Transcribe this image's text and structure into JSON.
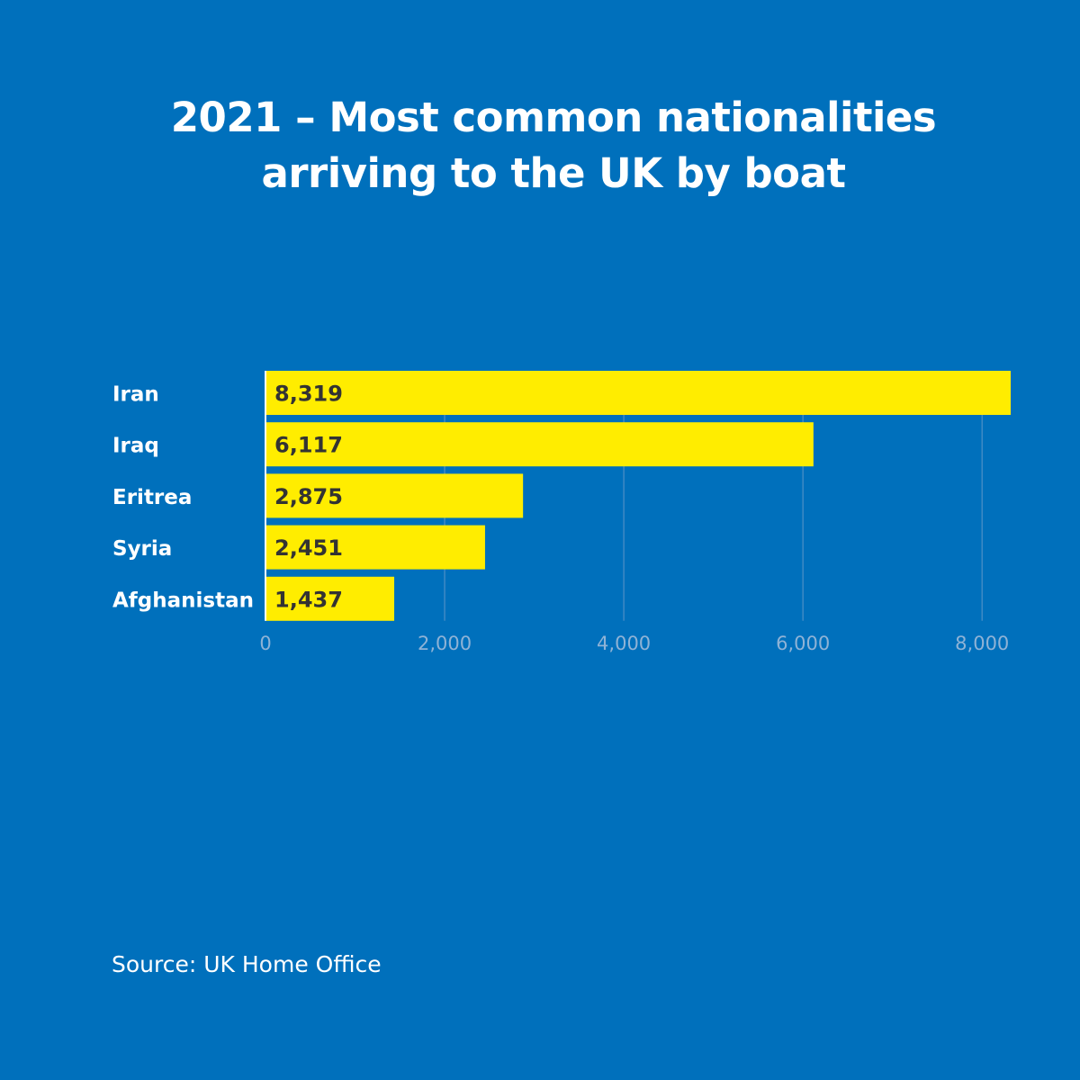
{
  "title_line1": "2021 – Most common nationalities",
  "title_line2": "arriving to the UK by boat",
  "source": "Source: UK Home Office",
  "colors": {
    "background": "#0070bc",
    "bar": "#ffed00",
    "bar_label": "#333333",
    "category_label": "#ffffff",
    "tick_label": "#8fb3d6",
    "gridline": "#3f8ac4"
  },
  "chart_data": {
    "type": "bar",
    "orientation": "horizontal",
    "title": "2021 – Most common nationalities arriving to the UK by boat",
    "categories": [
      "Iran",
      "Iraq",
      "Eritrea",
      "Syria",
      "Afghanistan"
    ],
    "values": [
      8319,
      6117,
      2875,
      2451,
      1437
    ],
    "value_labels": [
      "8,319",
      "6,117",
      "2,875",
      "2,451",
      "1,437"
    ],
    "x_ticks": [
      0,
      2000,
      4000,
      6000,
      8000
    ],
    "x_tick_labels": [
      "0",
      "2,000",
      "4,000",
      "6,000",
      "8,000"
    ],
    "xlim": [
      0,
      8319
    ],
    "grid": true,
    "xlabel": "",
    "ylabel": ""
  }
}
